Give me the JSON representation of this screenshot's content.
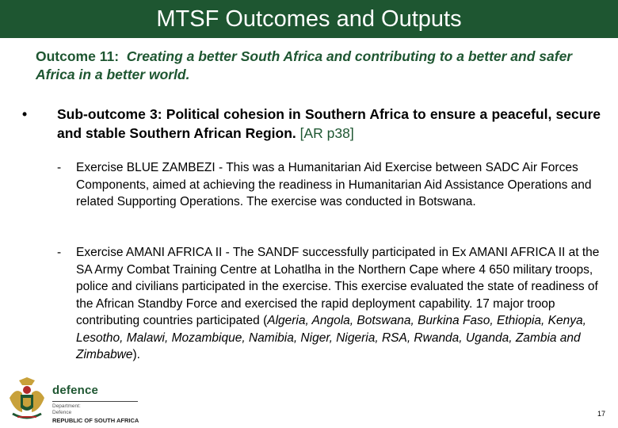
{
  "title": "MTSF Outcomes and Outputs",
  "outcome": {
    "label": "Outcome 11:",
    "text": "Creating a better South Africa and contributing to a better and safer Africa in a better world."
  },
  "bullet": {
    "marker": "•",
    "text": "Sub-outcome 3:  Political cohesion in Southern Africa to ensure a peaceful, secure and stable Southern African Region.",
    "reference": "[AR p38]"
  },
  "sub_items": [
    {
      "marker": "-",
      "text": "Exercise BLUE ZAMBEZI - This was a Humanitarian Aid Exercise between SADC Air Forces Components, aimed at achieving the readiness in Humanitarian Aid Assistance Operations and related Supporting Operations. The exercise was conducted in Botswana."
    },
    {
      "marker": "-",
      "text_start": "Exercise AMANI AFRICA II - The SANDF successfully participated in Ex AMANI AFRICA II at the SA Army Combat Training Centre at Lohatlha in the Northern Cape where 4 650 military troops, police and civilians participated in the exercise. This exercise evaluated the state of readiness of the African Standby Force and exercised the rapid deployment capability. 17 major troop contributing countries participated (",
      "countries": "Algeria, Angola, Botswana, Burkina Faso, Ethiopia, Kenya, Lesotho, Malawi, Mozambique, Namibia, Niger, Nigeria, RSA, Rwanda, Uganda, Zambia and Zimbabwe",
      "text_end": ")."
    }
  ],
  "footer": {
    "logo_word": "defence",
    "dept_line1": "Department:",
    "dept_line2": "Defence",
    "country": "REPUBLIC OF SOUTH AFRICA",
    "page_number": "17"
  },
  "colors": {
    "brand_green": "#1e5631",
    "coat_gold": "#c8a13a",
    "coat_red": "#b22b2b"
  },
  "icons": {
    "coat_of_arms": "coat-of-arms-icon"
  }
}
